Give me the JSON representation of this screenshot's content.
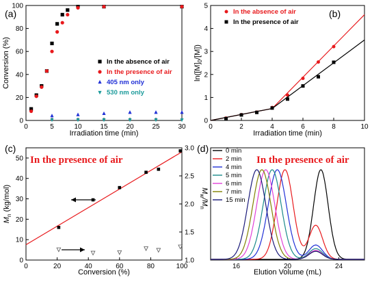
{
  "chart_data": [
    {
      "panel": "(a)",
      "type": "scatter",
      "xlabel": "Irradiation time (min)",
      "ylabel": "Conversion (%)",
      "xlim": [
        0,
        30
      ],
      "ylim": [
        0,
        100
      ],
      "xticks": [
        0,
        5,
        10,
        15,
        20,
        25,
        30
      ],
      "yticks": [
        0,
        20,
        40,
        60,
        80,
        100
      ],
      "legend_position": "center-right",
      "series": [
        {
          "name": "In the absence of air",
          "color": "#000000",
          "marker": "square",
          "x": [
            1,
            2,
            3,
            4,
            5,
            6,
            7,
            8,
            10,
            15,
            30
          ],
          "y": [
            10,
            22,
            30,
            43,
            67,
            84,
            92,
            96,
            99,
            99,
            99
          ]
        },
        {
          "name": "In the presence of air",
          "color": "#e8191c",
          "marker": "circle",
          "x": [
            1,
            2,
            3,
            4,
            5,
            6,
            7,
            8,
            10,
            15,
            30
          ],
          "y": [
            8,
            21,
            29,
            43,
            60,
            77,
            85,
            92,
            98,
            99,
            99
          ]
        },
        {
          "name": "405 nm only",
          "color": "#1f2fd6",
          "marker": "triangle-up",
          "x": [
            5,
            10,
            15,
            20,
            25,
            30
          ],
          "y": [
            4,
            5,
            6,
            7,
            7,
            7
          ]
        },
        {
          "name": "530 nm only",
          "color": "#1a9a9a",
          "marker": "triangle-down",
          "x": [
            5,
            10,
            15,
            20,
            25,
            30
          ],
          "y": [
            0.5,
            0.5,
            0.5,
            0.5,
            0.5,
            0.5
          ]
        }
      ]
    },
    {
      "panel": "(b)",
      "type": "scatter",
      "xlabel": "Irradiation time (min)",
      "ylabel": "ln([M]0/[M])",
      "xlim": [
        0,
        10
      ],
      "ylim": [
        0,
        5
      ],
      "xticks": [
        0,
        2,
        4,
        6,
        8,
        10
      ],
      "yticks": [
        0,
        1,
        2,
        3,
        4,
        5
      ],
      "legend_position": "top-left",
      "series": [
        {
          "name": "In the absence of air",
          "color": "#e8191c",
          "marker": "circle",
          "x": [
            1,
            2,
            3,
            4,
            5,
            6,
            7,
            8
          ],
          "y": [
            0.1,
            0.25,
            0.36,
            0.56,
            1.1,
            1.83,
            2.54,
            3.21
          ],
          "fit": [
            [
              0,
              0
            ],
            [
              4,
              0.52
            ],
            [
              10,
              4.6
            ]
          ]
        },
        {
          "name": "In the presence of air",
          "color": "#000000",
          "marker": "square",
          "x": [
            1,
            2,
            3,
            4,
            5,
            6,
            7,
            8
          ],
          "y": [
            0.08,
            0.24,
            0.35,
            0.54,
            0.93,
            1.5,
            1.9,
            2.53
          ],
          "fit": [
            [
              0,
              0
            ],
            [
              4,
              0.52
            ],
            [
              10,
              3.5
            ]
          ]
        }
      ]
    },
    {
      "panel": "(c)",
      "type": "scatter",
      "title": "In the presence of air",
      "xlabel": "Conversion (%)",
      "ylabel": "Mn (kg/mol)",
      "y2label": "Mw/Mn",
      "xlim": [
        0,
        100
      ],
      "ylim": [
        0,
        55
      ],
      "y2lim": [
        1.0,
        3.0
      ],
      "xticks": [
        0,
        20,
        40,
        60,
        80,
        100
      ],
      "yticks": [
        0,
        10,
        20,
        30,
        40,
        50
      ],
      "y2ticks": [
        1.0,
        1.5,
        2.0,
        2.5,
        3.0
      ],
      "series": [
        {
          "name": "Mn",
          "axis": "left",
          "color": "#000000",
          "marker": "square",
          "x": [
            21,
            43,
            60,
            77,
            85,
            99
          ],
          "y": [
            16,
            29.5,
            35.5,
            43,
            44.5,
            53.5
          ],
          "fit": [
            [
              0,
              7.5
            ],
            [
              100,
              53
            ]
          ]
        },
        {
          "name": "Mw/Mn",
          "axis": "right",
          "color": "#555555",
          "marker": "triangle-down",
          "x": [
            21,
            43,
            60,
            77,
            85,
            99
          ],
          "y": [
            1.19,
            1.13,
            1.14,
            1.21,
            1.18,
            1.24
          ]
        }
      ]
    },
    {
      "panel": "(d)",
      "type": "line",
      "title": "In the presence of air",
      "xlabel": "Elution Volume (mL)",
      "xlim": [
        14,
        26
      ],
      "xticks": [
        16,
        20,
        24
      ],
      "legend_position": "top-left",
      "series": [
        {
          "name": "0 min",
          "color": "#000000",
          "peak": 22.6,
          "width": 0.8
        },
        {
          "name": "2 min",
          "color": "#e8191c",
          "peak": 19.8,
          "width": 0.9,
          "tail": 0.38
        },
        {
          "name": "4 min",
          "color": "#1f2fd6",
          "peak": 19.2,
          "width": 1.0,
          "tail": 0.16
        },
        {
          "name": "5 min",
          "color": "#1a8a8a",
          "peak": 18.8,
          "width": 1.0,
          "tail": 0.12
        },
        {
          "name": "6 min",
          "color": "#e040d8",
          "peak": 18.3,
          "width": 1.0,
          "tail": 0.1
        },
        {
          "name": "7 min",
          "color": "#808000",
          "peak": 18.0,
          "width": 1.0,
          "tail": 0.09
        },
        {
          "name": "15 min",
          "color": "#1a1a7a",
          "peak": 17.6,
          "width": 1.0,
          "tail": 0.09
        }
      ]
    }
  ],
  "annotations": {
    "panel_a": "(a)",
    "panel_b": "(b)",
    "panel_c": "(c)",
    "panel_d": "(d)",
    "b_legend_1": "In the absence of air",
    "b_legend_2": "In the presence of air",
    "b_ylabel": "ln([M]",
    "b_ylabel_sub0": "0",
    "b_ylabel_mid": "/[M])",
    "c_ylabel_main": "M",
    "c_ylabel_sub": "n",
    "c_ylabel_units": " (kg/mol)",
    "c_y2label_1": "M",
    "c_y2label_sub1": "w",
    "c_y2label_sep": "/M",
    "c_y2label_sub2": "n"
  }
}
